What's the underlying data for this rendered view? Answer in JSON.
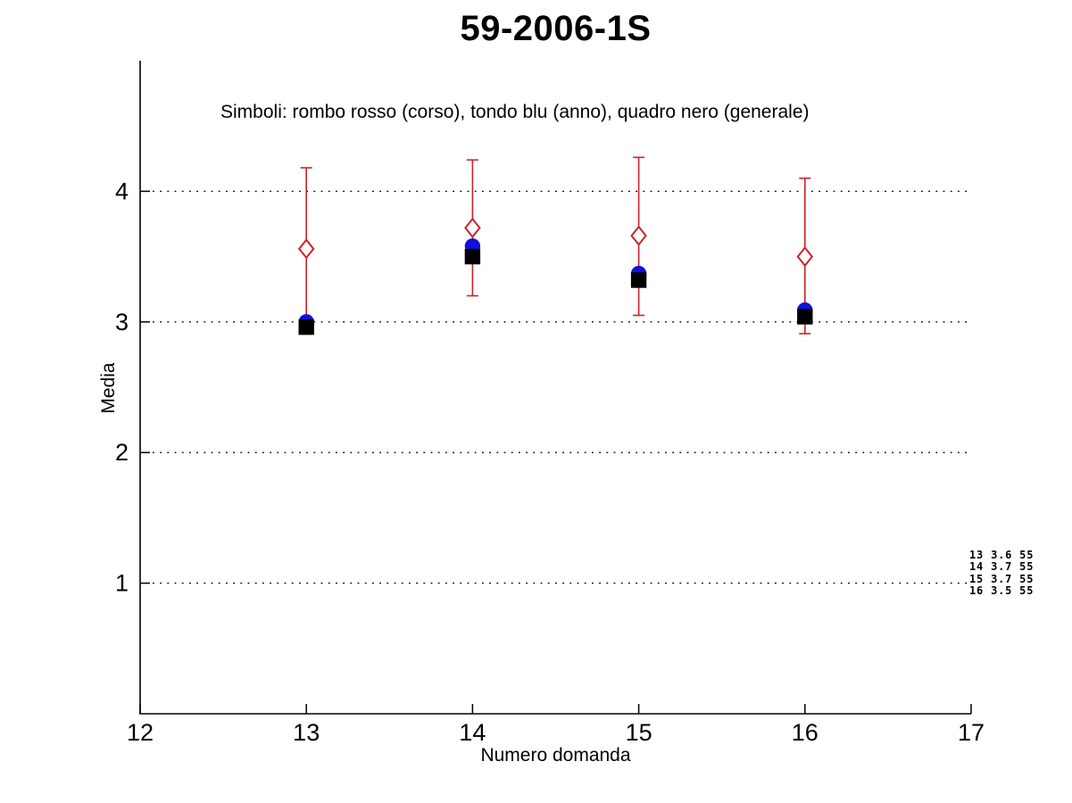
{
  "figure": {
    "background": "#ffffff"
  },
  "chart_data": {
    "type": "scatter",
    "title": "59-2006-1S",
    "subtitle": "Simboli: rombo rosso (corso), tondo blu (anno), quadro nero (generale)",
    "xlabel": "Numero domanda",
    "ylabel": "Media",
    "xlim": [
      12,
      17
    ],
    "ylim": [
      0,
      5
    ],
    "xticks": [
      12,
      13,
      14,
      15,
      16,
      17
    ],
    "yticks": [
      1,
      2,
      3,
      4
    ],
    "grid": {
      "horizontal_at_yticks": true,
      "style": "dotted",
      "color": "#000000"
    },
    "legend_position": "text-inside-plot-top",
    "x": [
      13,
      14,
      15,
      16
    ],
    "series": [
      {
        "name": "corso",
        "marker": "open-diamond",
        "color": "#cc2229",
        "values": [
          3.56,
          3.72,
          3.66,
          3.5
        ],
        "err_low": [
          2.96,
          3.2,
          3.05,
          2.91
        ],
        "err_high": [
          4.18,
          4.24,
          4.26,
          4.1
        ]
      },
      {
        "name": "anno",
        "marker": "filled-circle",
        "color": "#1111d6",
        "values": [
          3.0,
          3.58,
          3.37,
          3.09
        ]
      },
      {
        "name": "generale",
        "marker": "filled-square",
        "color": "#000000",
        "values": [
          2.96,
          3.5,
          3.32,
          3.04
        ]
      }
    ],
    "annotation_lines": [
      "13 3.6 55",
      "14 3.7 55",
      "15 3.7 55",
      "16 3.5 55"
    ]
  }
}
